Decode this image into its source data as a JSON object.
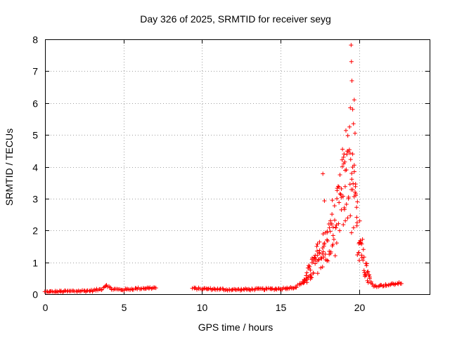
{
  "chart_data": {
    "type": "scatter",
    "title": "Day 326 of 2025, SRMTID for receiver seyg",
    "xlabel": "GPS time / hours",
    "ylabel": "SRMTID / TECUs",
    "xlim": [
      0,
      24.5
    ],
    "ylim": [
      0,
      8
    ],
    "xticks": [
      0,
      5,
      10,
      15,
      20
    ],
    "yticks": [
      0,
      1,
      2,
      3,
      4,
      5,
      6,
      7,
      8
    ],
    "grid": true,
    "marker": "+",
    "color": "#ff0000",
    "series": [
      {
        "name": "SRMTID",
        "segments": [
          {
            "t_start": 0.0,
            "t_end": 7.1,
            "step": 0.07,
            "profile": [
              [
                0.0,
                0.07
              ],
              [
                1.5,
                0.09
              ],
              [
                3.0,
                0.11
              ],
              [
                3.6,
                0.16
              ],
              [
                3.9,
                0.3
              ],
              [
                4.2,
                0.16
              ],
              [
                5.0,
                0.14
              ],
              [
                6.0,
                0.18
              ],
              [
                7.1,
                0.2
              ]
            ]
          },
          {
            "t_start": 9.4,
            "t_end": 22.7,
            "step": 0.07,
            "profile": [
              [
                9.4,
                0.18
              ],
              [
                12.0,
                0.14
              ],
              [
                15.0,
                0.17
              ],
              [
                16.0,
                0.22
              ],
              [
                16.6,
                0.45
              ],
              [
                17.0,
                0.75
              ],
              [
                17.5,
                1.2
              ],
              [
                18.0,
                1.5
              ],
              [
                18.5,
                2.0
              ],
              [
                18.9,
                2.8
              ],
              [
                19.2,
                3.6
              ],
              [
                19.4,
                3.2
              ],
              [
                19.7,
                2.6
              ],
              [
                20.0,
                1.8
              ],
              [
                20.4,
                0.9
              ],
              [
                20.7,
                0.4
              ],
              [
                21.0,
                0.25
              ],
              [
                22.0,
                0.3
              ],
              [
                22.7,
                0.35
              ]
            ]
          }
        ],
        "highlights": [
          {
            "x": 17.7,
            "y": 3.78
          },
          {
            "x": 17.8,
            "y": 2.93
          },
          {
            "x": 18.3,
            "y": 2.95
          },
          {
            "x": 18.95,
            "y": 4.55
          },
          {
            "x": 19.05,
            "y": 4.4
          },
          {
            "x": 19.1,
            "y": 4.15
          },
          {
            "x": 19.2,
            "y": 3.9
          },
          {
            "x": 19.4,
            "y": 5.25
          },
          {
            "x": 19.45,
            "y": 5.85
          },
          {
            "x": 19.5,
            "y": 7.82
          },
          {
            "x": 19.52,
            "y": 7.3
          },
          {
            "x": 19.55,
            "y": 6.7
          },
          {
            "x": 19.6,
            "y": 5.8
          },
          {
            "x": 19.65,
            "y": 5.35
          },
          {
            "x": 19.7,
            "y": 6.1
          },
          {
            "x": 19.75,
            "y": 5.05
          },
          {
            "x": 19.6,
            "y": 4.4
          },
          {
            "x": 19.7,
            "y": 4.05
          },
          {
            "x": 19.8,
            "y": 3.1
          },
          {
            "x": 19.9,
            "y": 2.9
          },
          {
            "x": 20.05,
            "y": 2.3
          }
        ]
      }
    ]
  }
}
